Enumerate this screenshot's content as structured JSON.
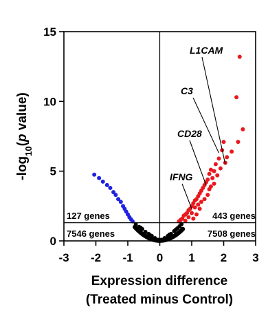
{
  "chart_data": {
    "type": "scatter",
    "xlabel_line1": "Expression difference",
    "xlabel_line2": "(Treated minus Control)",
    "ylabel_prefix": "-log",
    "ylabel_sub": "10",
    "ylabel_paren_open": "(",
    "ylabel_p": "p",
    "ylabel_suffix": " value)",
    "xlim": [
      -3,
      3
    ],
    "ylim": [
      0,
      15
    ],
    "x_ticks": [
      -3,
      -2,
      -1,
      0,
      1,
      2,
      3
    ],
    "y_ticks": [
      0,
      5,
      10,
      15
    ],
    "x_tick_labels": [
      "-3",
      "-2",
      "-1",
      "0",
      "1",
      "2",
      "3"
    ],
    "y_tick_labels": [
      "0",
      "5",
      "10",
      "15"
    ],
    "threshold_y": 1.3,
    "reference_x": 0,
    "grid": false,
    "colors": {
      "up": "#e8191e",
      "down": "#1f22e0",
      "nonsignificant": "#000000"
    },
    "region_counts": {
      "left_upper": "127 genes",
      "left_lower": "7546 genes",
      "right_upper": "443 genes",
      "right_lower": "7508 genes"
    },
    "annotations": [
      {
        "label": "L1CAM",
        "target": [
          2.05,
          5.5
        ]
      },
      {
        "label": "C3",
        "target": [
          1.85,
          6.3
        ]
      },
      {
        "label": "CD28",
        "target": [
          1.45,
          4.0
        ]
      },
      {
        "label": "IFNG",
        "target": [
          1.0,
          2.3
        ]
      }
    ],
    "series": [
      {
        "group": "down",
        "points": [
          [
            -2.05,
            4.75
          ],
          [
            -1.9,
            4.5
          ],
          [
            -1.78,
            4.25
          ],
          [
            -1.65,
            4.0
          ],
          [
            -1.55,
            3.8
          ],
          [
            -1.45,
            3.5
          ],
          [
            -1.38,
            3.3
          ],
          [
            -1.3,
            3.0
          ],
          [
            -1.22,
            2.8
          ],
          [
            -1.15,
            2.5
          ],
          [
            -1.1,
            2.3
          ],
          [
            -1.05,
            2.1
          ],
          [
            -1.0,
            1.9
          ],
          [
            -0.95,
            1.7
          ],
          [
            -0.9,
            1.55
          ],
          [
            -0.85,
            1.4
          ]
        ]
      },
      {
        "group": "up",
        "points": [
          [
            2.5,
            13.2
          ],
          [
            2.4,
            10.3
          ],
          [
            2.6,
            8.0
          ],
          [
            2.45,
            7.1
          ],
          [
            2.0,
            7.1
          ],
          [
            2.25,
            6.4
          ],
          [
            1.95,
            6.5
          ],
          [
            2.1,
            6.0
          ],
          [
            1.85,
            5.9
          ],
          [
            2.05,
            5.6
          ],
          [
            1.75,
            5.5
          ],
          [
            1.9,
            5.2
          ],
          [
            1.7,
            5.0
          ],
          [
            1.6,
            5.1
          ],
          [
            1.55,
            4.8
          ],
          [
            1.8,
            4.7
          ],
          [
            1.65,
            4.5
          ],
          [
            1.5,
            4.4
          ],
          [
            1.45,
            4.2
          ],
          [
            1.7,
            4.1
          ],
          [
            1.4,
            4.0
          ],
          [
            1.35,
            3.8
          ],
          [
            1.55,
            3.7
          ],
          [
            1.3,
            3.6
          ],
          [
            1.25,
            3.4
          ],
          [
            1.5,
            3.3
          ],
          [
            1.2,
            3.2
          ],
          [
            1.15,
            3.0
          ],
          [
            1.4,
            3.0
          ],
          [
            1.1,
            2.9
          ],
          [
            1.3,
            2.8
          ],
          [
            1.05,
            2.7
          ],
          [
            1.2,
            2.6
          ],
          [
            1.0,
            2.5
          ],
          [
            1.6,
            3.9
          ],
          [
            0.95,
            2.3
          ],
          [
            1.1,
            2.4
          ],
          [
            0.9,
            2.2
          ],
          [
            1.25,
            2.3
          ],
          [
            0.85,
            2.0
          ],
          [
            1.0,
            2.0
          ],
          [
            0.8,
            1.9
          ],
          [
            1.15,
            1.9
          ],
          [
            0.75,
            1.8
          ],
          [
            0.9,
            1.7
          ],
          [
            0.7,
            1.6
          ],
          [
            1.05,
            1.6
          ],
          [
            0.65,
            1.5
          ],
          [
            0.8,
            1.45
          ],
          [
            0.6,
            1.4
          ]
        ]
      },
      {
        "group": "nonsignificant",
        "points": [
          [
            -0.75,
            1.2
          ],
          [
            -0.65,
            1.0
          ],
          [
            -0.55,
            0.85
          ],
          [
            -0.45,
            0.65
          ],
          [
            -0.35,
            0.5
          ],
          [
            -0.25,
            0.35
          ],
          [
            -0.15,
            0.2
          ],
          [
            -0.05,
            0.08
          ],
          [
            0.05,
            0.08
          ],
          [
            0.15,
            0.2
          ],
          [
            0.25,
            0.35
          ],
          [
            0.35,
            0.5
          ],
          [
            0.45,
            0.7
          ],
          [
            0.55,
            0.9
          ],
          [
            0.62,
            1.05
          ],
          [
            0.68,
            1.2
          ],
          [
            -0.6,
            0.95
          ],
          [
            0.5,
            0.8
          ],
          [
            0.3,
            0.45
          ],
          [
            -0.3,
            0.4
          ]
        ]
      }
    ]
  }
}
